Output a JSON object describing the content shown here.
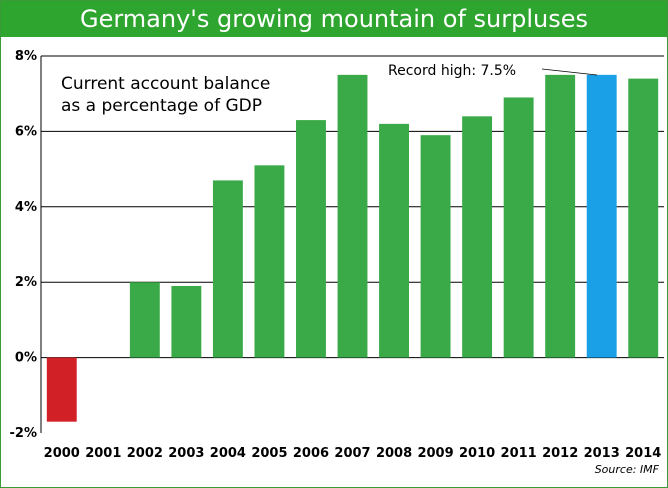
{
  "chart_data": {
    "type": "bar",
    "title": "Germany's growing mountain of surpluses",
    "subtitle_lines": [
      "Current account balance",
      "as a percentage of GDP"
    ],
    "categories": [
      "2000",
      "2001",
      "2002",
      "2003",
      "2004",
      "2005",
      "2006",
      "2007",
      "2008",
      "2009",
      "2010",
      "2011",
      "2012",
      "2013",
      "2014"
    ],
    "values": [
      -1.7,
      0.0,
      2.0,
      1.9,
      4.7,
      5.1,
      6.3,
      7.5,
      6.2,
      5.9,
      6.4,
      6.9,
      7.5,
      7.5,
      7.4
    ],
    "ylim": [
      -2,
      8
    ],
    "yticks": [
      -2,
      0,
      2,
      4,
      6,
      8
    ],
    "ytick_labels": [
      "-2%",
      "0%",
      "2%",
      "4%",
      "6%",
      "8%"
    ],
    "grid": "horizontal",
    "annotation": {
      "text": "Record high: 7.5%",
      "category": "2013"
    },
    "source": "Source: IMF",
    "colors": {
      "title_bar": "#2ea52e",
      "positive": "#3aaa48",
      "negative": "#d22027",
      "highlight": "#1aa0e6"
    },
    "highlight_category": "2013"
  }
}
